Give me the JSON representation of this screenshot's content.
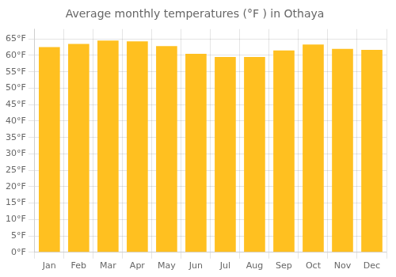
{
  "chart_data": {
    "type": "bar",
    "title": "Average monthly temperatures (°F ) in Othaya",
    "categories": [
      "Jan",
      "Feb",
      "Mar",
      "Apr",
      "May",
      "Jun",
      "Jul",
      "Aug",
      "Sep",
      "Oct",
      "Nov",
      "Dec"
    ],
    "values": [
      62.5,
      63.5,
      64.5,
      64.3,
      62.8,
      60.5,
      59.5,
      59.5,
      61.5,
      63.3,
      62.0,
      61.7
    ],
    "color": "#FFC020",
    "ylim": [
      0,
      68
    ],
    "yticks": [
      {
        "value": 0,
        "label": "0°F"
      },
      {
        "value": 5,
        "label": "5°F"
      },
      {
        "value": 10,
        "label": "10°F"
      },
      {
        "value": 15,
        "label": "15°F"
      },
      {
        "value": 20,
        "label": "20°F"
      },
      {
        "value": 25,
        "label": "25°F"
      },
      {
        "value": 30,
        "label": "30°F"
      },
      {
        "value": 35,
        "label": "35°F"
      },
      {
        "value": 40,
        "label": "40°F"
      },
      {
        "value": 45,
        "label": "45°F"
      },
      {
        "value": 50,
        "label": "50°F"
      },
      {
        "value": 55,
        "label": "55°F"
      },
      {
        "value": 60,
        "label": "60°F"
      },
      {
        "value": 65,
        "label": "65°F"
      }
    ],
    "grid": true
  }
}
